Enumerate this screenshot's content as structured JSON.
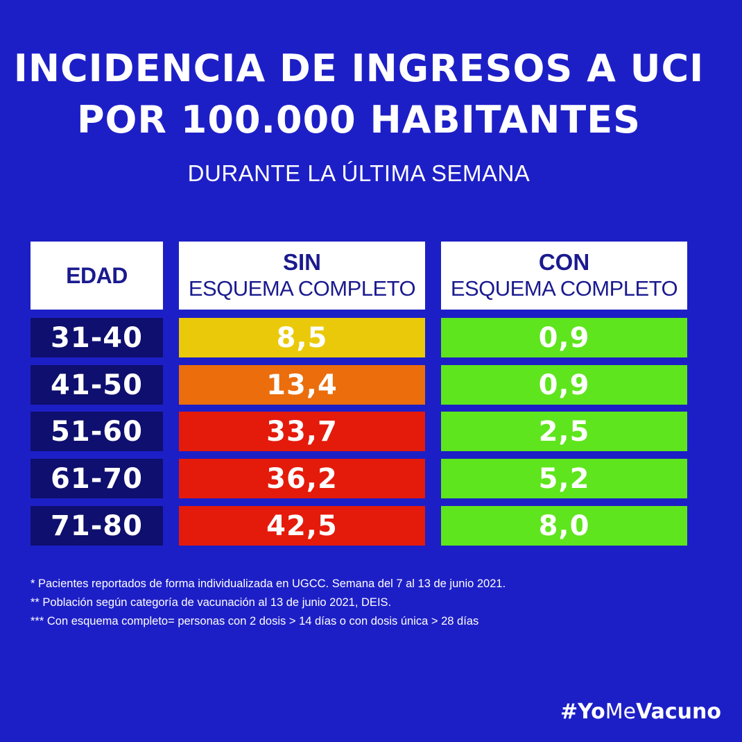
{
  "title_lines": [
    "INCIDENCIA DE INGRESOS A UCI",
    "POR 100.000 HABITANTES"
  ],
  "subtitle": "DURANTE LA ÚLTIMA SEMANA",
  "headers": {
    "edad": "EDAD",
    "sin_top": "SIN",
    "sin_bottom": "ESQUEMA COMPLETO",
    "con_top": "CON",
    "con_bottom": "ESQUEMA COMPLETO"
  },
  "rows": [
    {
      "age": "31-40",
      "sin": "8,5",
      "con": "0,9",
      "sin_color": "#eac90a"
    },
    {
      "age": "41-50",
      "sin": "13,4",
      "con": "0,9",
      "sin_color": "#eb6d0c"
    },
    {
      "age": "51-60",
      "sin": "33,7",
      "con": "2,5",
      "sin_color": "#e41a0b"
    },
    {
      "age": "61-70",
      "sin": "36,2",
      "con": "5,2",
      "sin_color": "#e41a0b"
    },
    {
      "age": "71-80",
      "sin": "42,5",
      "con": "8,0",
      "sin_color": "#e41a0b"
    }
  ],
  "chart_data": {
    "type": "table",
    "columns": [
      "EDAD",
      "SIN ESQUEMA COMPLETO",
      "CON ESQUEMA COMPLETO"
    ],
    "categories": [
      "31-40",
      "41-50",
      "51-60",
      "61-70",
      "71-80"
    ],
    "series": [
      {
        "name": "SIN ESQUEMA COMPLETO",
        "values": [
          8.5,
          13.4,
          33.7,
          36.2,
          42.5
        ]
      },
      {
        "name": "CON ESQUEMA COMPLETO",
        "values": [
          0.9,
          0.9,
          2.5,
          5.2,
          8.0
        ]
      }
    ]
  },
  "colors": {
    "background": "#1d1fc6",
    "age_cell": "#0e0f6e",
    "con_cell": "#5ee51d",
    "header_text": "#1a1a8f"
  },
  "notes": [
    "* Pacientes reportados de forma individualizada en UGCC. Semana del 7 al 13 de junio 2021.",
    "** Población según categoría de vacunación al 13 de junio 2021, DEIS.",
    "*** Con esquema completo= personas con 2 dosis > 14 días o con dosis única > 28 días"
  ],
  "hashtag": {
    "prefix": "#",
    "part1": "YoMe",
    "part2": "Vacuno"
  }
}
